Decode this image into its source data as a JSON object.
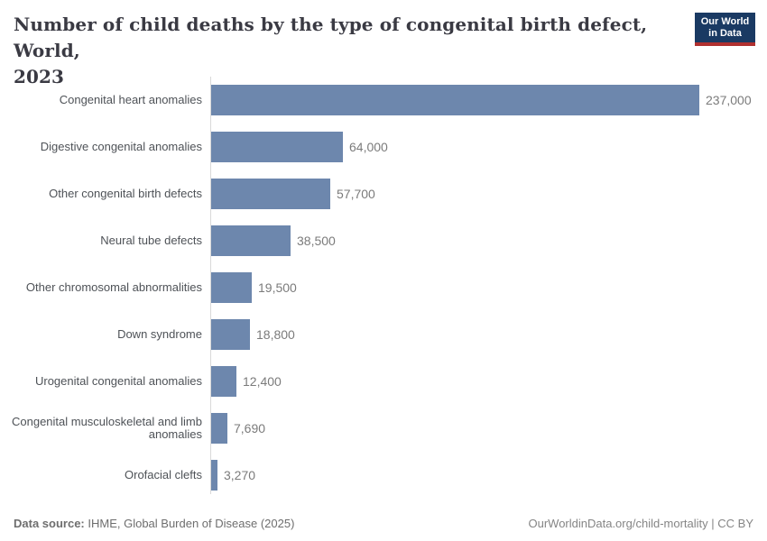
{
  "header": {
    "title_line1": "Number of child deaths by the type of congenital birth defect, World,",
    "title_line2": "2023",
    "logo": {
      "line1": "Our World",
      "line2": "in Data"
    }
  },
  "chart_data": {
    "type": "bar",
    "orientation": "horizontal",
    "title": "Number of child deaths by the type of congenital birth defect, World, 2023",
    "xlabel": "",
    "ylabel": "",
    "grid": false,
    "xlim": [
      0,
      237000
    ],
    "categories": [
      "Congenital heart anomalies",
      "Digestive congenital anomalies",
      "Other congenital birth defects",
      "Neural tube defects",
      "Other chromosomal abnormalities",
      "Down syndrome",
      "Urogenital congenital anomalies",
      "Congenital musculoskeletal and limb anomalies",
      "Orofacial clefts"
    ],
    "values": [
      237000,
      64000,
      57700,
      38500,
      19500,
      18800,
      12400,
      7690,
      3270
    ],
    "value_labels": [
      "237,000",
      "64,000",
      "57,700",
      "38,500",
      "19,500",
      "18,800",
      "12,400",
      "7,690",
      "3,270"
    ]
  },
  "footer": {
    "source_label": "Data source:",
    "source_text": " IHME, Global Burden of Disease (2025)",
    "site_text": "OurWorldinData.org/child-mortality",
    "separator": " | ",
    "license_text": "CC BY"
  },
  "colors": {
    "bar": "#6d87ad",
    "axis_line": "#d9d9d9",
    "logo_bg": "#1a3a63",
    "logo_stripe": "#b0302f",
    "title_color": "#3a3a43",
    "category_color": "#4e5257",
    "value_color": "#7b7b7b",
    "footer_color": "#6e6e6e"
  }
}
